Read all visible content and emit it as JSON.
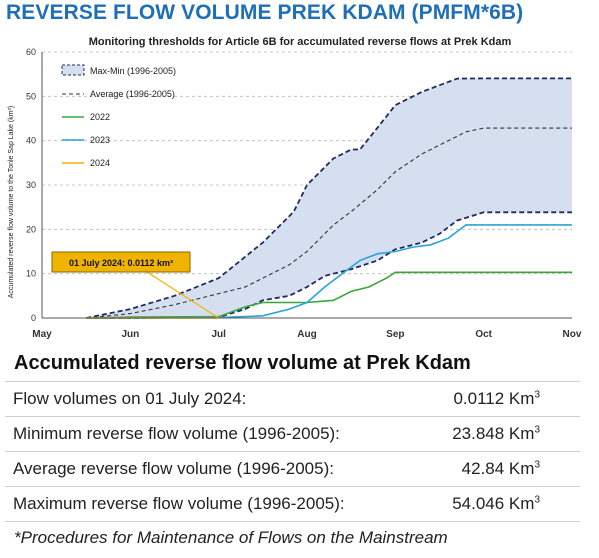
{
  "header": {
    "title": "REVERSE FLOW VOLUME PREK KDAM (PMFM*6B)"
  },
  "chart_data": {
    "type": "area",
    "title": "Monitoring thresholds for Article 6B for accumulated reverse flows at Prek Kdam",
    "xlabel": "",
    "ylabel": "Accumulated reverse flow volume to the Tonle Sap Lake (km³)",
    "x_ticks": [
      "May",
      "Jun",
      "Jul",
      "Aug",
      "Sep",
      "Oct",
      "Nov"
    ],
    "y_ticks": [
      0,
      10,
      20,
      30,
      40,
      50,
      60
    ],
    "ylim": [
      0,
      60
    ],
    "x_unit": "month",
    "xlim": [
      0,
      6
    ],
    "grid": true,
    "legend_position": "top-left",
    "band": {
      "name": "Max-Min (1996-2005)",
      "fill": "#d6dff0",
      "edge_color": "#1f2b5e",
      "upper": [
        [
          0.5,
          0
        ],
        [
          1.0,
          2
        ],
        [
          1.5,
          5
        ],
        [
          2.0,
          9
        ],
        [
          2.5,
          17
        ],
        [
          2.85,
          24
        ],
        [
          3.0,
          30
        ],
        [
          3.3,
          36
        ],
        [
          3.5,
          38
        ],
        [
          3.6,
          38
        ],
        [
          3.8,
          43
        ],
        [
          4.0,
          48
        ],
        [
          4.3,
          51
        ],
        [
          4.7,
          54
        ],
        [
          5.0,
          54.046
        ],
        [
          6.0,
          54.046
        ]
      ],
      "lower": [
        [
          0.5,
          0
        ],
        [
          1.0,
          0
        ],
        [
          2.0,
          0.2
        ],
        [
          2.3,
          2
        ],
        [
          2.5,
          4
        ],
        [
          2.8,
          5
        ],
        [
          3.0,
          7
        ],
        [
          3.2,
          9.5
        ],
        [
          3.5,
          11
        ],
        [
          3.8,
          13
        ],
        [
          4.0,
          15.5
        ],
        [
          4.3,
          17
        ],
        [
          4.5,
          19
        ],
        [
          4.7,
          22
        ],
        [
          5.0,
          23.848
        ],
        [
          6.0,
          23.848
        ]
      ]
    },
    "series": [
      {
        "name": "Average (1996-2005)",
        "color": "#333333",
        "dash": true,
        "points": [
          [
            0.5,
            0
          ],
          [
            1.0,
            1
          ],
          [
            1.5,
            3
          ],
          [
            2.0,
            5.5
          ],
          [
            2.3,
            7
          ],
          [
            2.5,
            9
          ],
          [
            2.8,
            12
          ],
          [
            3.0,
            15
          ],
          [
            3.3,
            21
          ],
          [
            3.5,
            24
          ],
          [
            3.8,
            29
          ],
          [
            4.0,
            33
          ],
          [
            4.3,
            37
          ],
          [
            4.6,
            40
          ],
          [
            4.8,
            42
          ],
          [
            5.0,
            42.84
          ],
          [
            6.0,
            42.84
          ]
        ]
      },
      {
        "name": "2022",
        "color": "#3aa63a",
        "dash": false,
        "points": [
          [
            0.5,
            0
          ],
          [
            1.0,
            0.2
          ],
          [
            2.0,
            0.3
          ],
          [
            2.3,
            2.5
          ],
          [
            2.5,
            3.5
          ],
          [
            3.0,
            3.5
          ],
          [
            3.3,
            4
          ],
          [
            3.5,
            6
          ],
          [
            3.7,
            7
          ],
          [
            3.9,
            9
          ],
          [
            4.0,
            10.3
          ],
          [
            6.0,
            10.3
          ]
        ]
      },
      {
        "name": "2023",
        "color": "#2aa3d9",
        "dash": false,
        "points": [
          [
            0.5,
            0
          ],
          [
            1.0,
            0
          ],
          [
            2.0,
            0.1
          ],
          [
            2.5,
            0.5
          ],
          [
            2.8,
            2
          ],
          [
            3.0,
            3.5
          ],
          [
            3.2,
            7
          ],
          [
            3.4,
            10
          ],
          [
            3.6,
            13
          ],
          [
            3.8,
            14.5
          ],
          [
            4.0,
            15
          ],
          [
            4.2,
            16
          ],
          [
            4.4,
            16.5
          ],
          [
            4.6,
            18
          ],
          [
            4.8,
            21
          ],
          [
            5.0,
            21
          ],
          [
            6.0,
            21
          ]
        ]
      },
      {
        "name": "2024",
        "color": "#f0b400",
        "dash": false,
        "points": [
          [
            0.5,
            0
          ],
          [
            1.0,
            0
          ],
          [
            1.5,
            0
          ],
          [
            2.0,
            0.0112
          ]
        ]
      }
    ],
    "annotation": {
      "text": "01 July 2024: 0.0112 km³",
      "x": 2.0,
      "y": 0.0112,
      "color": "#f0b400"
    }
  },
  "summary": {
    "title": "Accumulated reverse flow volume at Prek Kdam",
    "rows": [
      {
        "label": "Flow volumes on 01 July 2024:",
        "value": "0.0112 Km",
        "sup": "3"
      },
      {
        "label": "Minimum reverse flow volume (1996-2005):",
        "value": "23.848 Km",
        "sup": "3"
      },
      {
        "label": "Average reverse flow volume (1996-2005):",
        "value": "42.84 Km",
        "sup": "3"
      },
      {
        "label": "Maximum reverse flow volume (1996-2005):",
        "value": "54.046 Km",
        "sup": "3"
      }
    ],
    "footnote": "*Procedures for Maintenance of Flows on the Mainstream"
  }
}
